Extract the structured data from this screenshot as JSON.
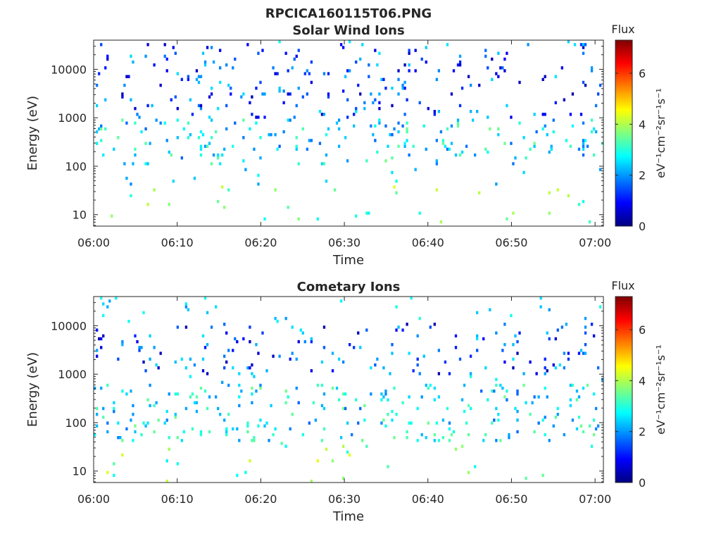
{
  "figure_title": "RPCICA160115T06.PNG",
  "colorbar": {
    "title": "Flux",
    "label": "eV⁻¹cm⁻²sr⁻¹s⁻¹",
    "range": [
      0,
      7.3
    ],
    "ticks": [
      "0",
      "2",
      "4",
      "6"
    ],
    "colormap": [
      "#00007f",
      "#0000ff",
      "#007fff",
      "#00ffff",
      "#7fff7f",
      "#ffff00",
      "#ff7f00",
      "#ff0000",
      "#7f0000"
    ]
  },
  "chart_data": [
    {
      "type": "heatmap",
      "title": "Solar Wind Ions",
      "xlabel": "Time",
      "ylabel": "Energy (eV)",
      "x_range": [
        "06:00",
        "07:01"
      ],
      "x_ticks": [
        "06:00",
        "06:10",
        "06:20",
        "06:30",
        "06:40",
        "06:50",
        "07:00"
      ],
      "y_scale": "log",
      "y_range": [
        5.8,
        40000
      ],
      "y_ticks": [
        "10",
        "100",
        "1000",
        "10000"
      ],
      "grid": false,
      "bursts_minutes": [
        2.5,
        5.5,
        8.5,
        12.5,
        15.5,
        18.5,
        22.5,
        25.5,
        28.5,
        31.5,
        34.5,
        37.5,
        40.5,
        43.5,
        46.5,
        49.5,
        52.5,
        55.5,
        58.5
      ],
      "low_energy_band_eV": [
        6,
        40
      ],
      "mid_energy_band_eV": [
        100,
        1000
      ],
      "high_energy_band_eV": [
        1000,
        35000
      ]
    },
    {
      "type": "heatmap",
      "title": "Cometary Ions",
      "xlabel": "Time",
      "ylabel": "Energy (eV)",
      "x_range": [
        "06:00",
        "07:01"
      ],
      "x_ticks": [
        "06:00",
        "06:10",
        "06:20",
        "06:30",
        "06:40",
        "06:50",
        "07:00"
      ],
      "y_scale": "log",
      "y_range": [
        5.8,
        40000
      ],
      "y_ticks": [
        "10",
        "100",
        "1000",
        "10000"
      ],
      "grid": false,
      "bursts_minutes": [
        2.5,
        5.5,
        8.5,
        12.5,
        15.5,
        18.5,
        21.5,
        25.5,
        28.5,
        31.5,
        34.5,
        37.5,
        40.5,
        43.5,
        46.5,
        49.5,
        52.5,
        55.5,
        58.5
      ],
      "low_energy_band_eV": [
        6,
        40
      ],
      "mid_energy_band_eV": [
        40,
        600
      ],
      "high_energy_band_eV": [
        1000,
        12000
      ]
    }
  ]
}
